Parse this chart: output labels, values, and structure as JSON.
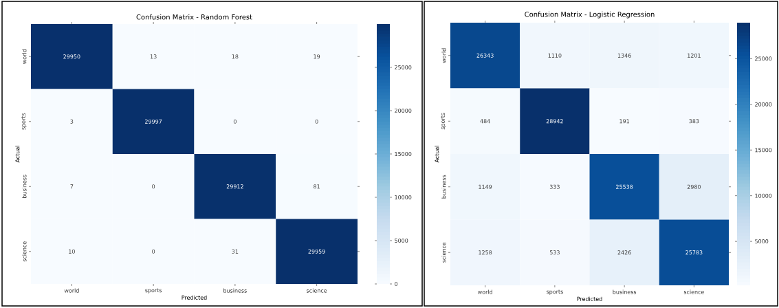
{
  "chart_data": [
    {
      "type": "heatmap",
      "title": "Confusion Matrix - Random Forest",
      "xlabel": "Predicted",
      "ylabel": "Actual",
      "categories": [
        "world",
        "sports",
        "business",
        "science"
      ],
      "y_categories": [
        "world",
        "sports",
        "business",
        "science"
      ],
      "cells": [
        [
          29950,
          13,
          18,
          19
        ],
        [
          3,
          29997,
          0,
          0
        ],
        [
          7,
          0,
          29912,
          81
        ],
        [
          10,
          0,
          31,
          29959
        ]
      ],
      "clim": [
        0,
        29997
      ],
      "cticks": [
        0,
        5000,
        10000,
        15000,
        20000,
        25000
      ],
      "data_labels": true
    },
    {
      "type": "heatmap",
      "title": "Confusion Matrix - Logistic Regression",
      "xlabel": "Predicted",
      "ylabel": "Actual",
      "categories": [
        "world",
        "sports",
        "business",
        "science"
      ],
      "y_categories": [
        "world",
        "sports",
        "business",
        "science"
      ],
      "cells": [
        [
          26343,
          1110,
          1346,
          1201
        ],
        [
          484,
          28942,
          191,
          383
        ],
        [
          1149,
          333,
          25538,
          2980
        ],
        [
          1258,
          533,
          2426,
          25783
        ]
      ],
      "clim": [
        191,
        28942
      ],
      "cticks": [
        5000,
        10000,
        15000,
        20000,
        25000
      ],
      "data_labels": true
    }
  ]
}
